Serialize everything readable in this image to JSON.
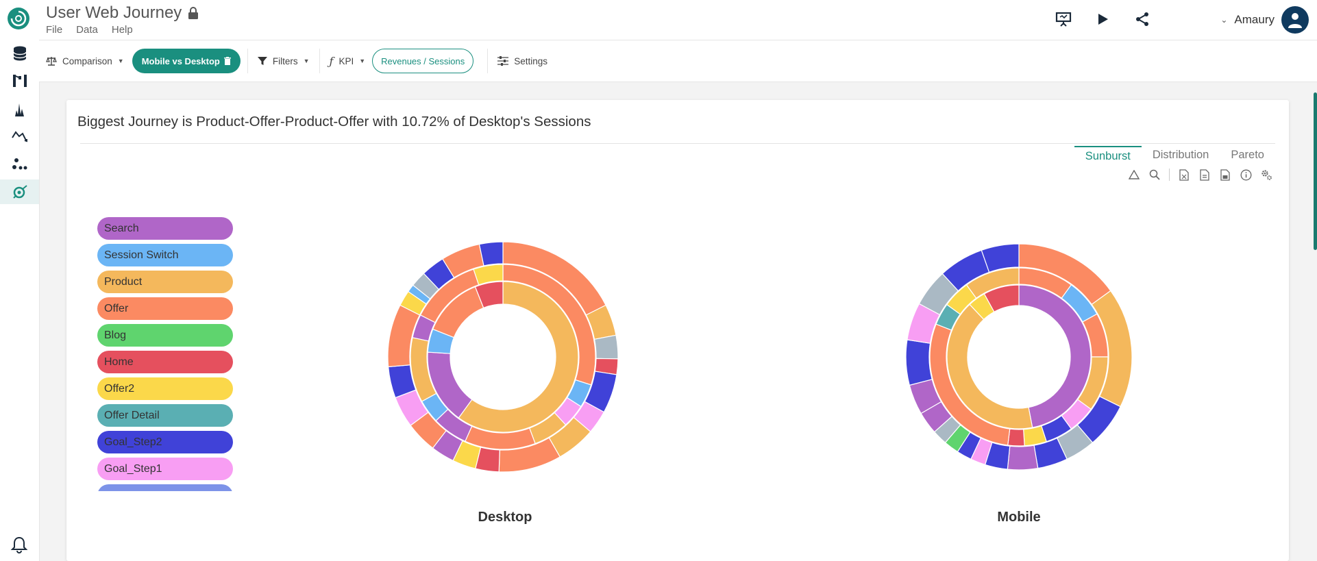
{
  "header": {
    "title": "User Web Journey",
    "menu": [
      "File",
      "Data",
      "Help"
    ],
    "user_name": "Amaury"
  },
  "toolbar": {
    "comparison_label": "Comparison",
    "comparison_value": "Mobile vs Desktop",
    "filters_label": "Filters",
    "kpi_label": "KPI",
    "kpi_value": "Revenues / Sessions",
    "settings_label": "Settings"
  },
  "card": {
    "title": "Biggest Journey is Product-Offer-Product-Offer with 10.72% of Desktop's Sessions",
    "tabs": [
      "Sunburst",
      "Distribution",
      "Pareto"
    ],
    "active_tab": "Sunburst"
  },
  "legend": [
    {
      "label": "Search",
      "color": "#b066c8"
    },
    {
      "label": "Session Switch",
      "color": "#6bb5f5"
    },
    {
      "label": "Product",
      "color": "#f4b85c"
    },
    {
      "label": "Offer",
      "color": "#fb8a62"
    },
    {
      "label": "Blog",
      "color": "#5fd46e"
    },
    {
      "label": "Home",
      "color": "#e5505e"
    },
    {
      "label": "Offer2",
      "color": "#fbd84a"
    },
    {
      "label": "Offer Detail",
      "color": "#5aafb3"
    },
    {
      "label": "Goal_Step2",
      "color": "#4042d8"
    },
    {
      "label": "Goal_Step1",
      "color": "#f89ef3"
    },
    {
      "label": "",
      "color": "#7d93e8"
    }
  ],
  "chart_data": [
    {
      "type": "sunburst",
      "title": "Desktop",
      "rings": [
        [
          {
            "label": "Product",
            "share": 0.6,
            "color": "#f4b85c"
          },
          {
            "label": "Search",
            "share": 0.16,
            "color": "#b066c8"
          },
          {
            "label": "Session Switch",
            "share": 0.05,
            "color": "#6bb5f5"
          },
          {
            "label": "Offer",
            "share": 0.13,
            "color": "#fb8a62"
          },
          {
            "label": "Home",
            "share": 0.06,
            "color": "#e5505e"
          }
        ],
        [
          {
            "label": "Offer",
            "share": 0.29,
            "color": "#fb8a62"
          },
          {
            "label": "Session Switch",
            "share": 0.04,
            "color": "#6bb5f5"
          },
          {
            "label": "Goal_Step1",
            "share": 0.04,
            "color": "#f89ef3"
          },
          {
            "label": "Product",
            "share": 0.06,
            "color": "#f4b85c"
          },
          {
            "label": "Offer",
            "share": 0.12,
            "color": "#fb8a62"
          },
          {
            "label": "Search",
            "share": 0.06,
            "color": "#b066c8"
          },
          {
            "label": "Session Switch",
            "share": 0.04,
            "color": "#6bb5f5"
          },
          {
            "label": "Product",
            "share": 0.11,
            "color": "#f4b85c"
          },
          {
            "label": "Search",
            "share": 0.04,
            "color": "#b066c8"
          },
          {
            "label": "Offer",
            "share": 0.12,
            "color": "#fb8a62"
          },
          {
            "label": "Offer2",
            "share": 0.05,
            "color": "#fbd84a"
          }
        ],
        [
          {
            "label": "Offer",
            "share": 0.16,
            "color": "#fb8a62"
          },
          {
            "label": "Product",
            "share": 0.04,
            "color": "#f4b85c"
          },
          {
            "label": "Offer Detail",
            "share": 0.03,
            "color": "#aab9c4"
          },
          {
            "label": "Home",
            "share": 0.02,
            "color": "#e5505e"
          },
          {
            "label": "Goal_Step2",
            "share": 0.05,
            "color": "#4042d8"
          },
          {
            "label": "Goal_Step1",
            "share": 0.03,
            "color": "#f89ef3"
          },
          {
            "label": "Product",
            "share": 0.05,
            "color": "#f4b85c"
          },
          {
            "label": "Offer",
            "share": 0.08,
            "color": "#fb8a62"
          },
          {
            "label": "Home",
            "share": 0.03,
            "color": "#e5505e"
          },
          {
            "label": "Offer2",
            "share": 0.03,
            "color": "#fbd84a"
          },
          {
            "label": "Search",
            "share": 0.03,
            "color": "#b066c8"
          },
          {
            "label": "Offer",
            "share": 0.04,
            "color": "#fb8a62"
          },
          {
            "label": "Goal_Step1",
            "share": 0.04,
            "color": "#f89ef3"
          },
          {
            "label": "Goal_Step2",
            "share": 0.04,
            "color": "#4042d8"
          },
          {
            "label": "Offer",
            "share": 0.08,
            "color": "#fb8a62"
          },
          {
            "label": "Offer2",
            "share": 0.02,
            "color": "#fbd84a"
          },
          {
            "label": "Session Switch",
            "share": 0.01,
            "color": "#6bb5f5"
          },
          {
            "label": "Offer Detail",
            "share": 0.02,
            "color": "#aab9c4"
          },
          {
            "label": "Goal_Step2",
            "share": 0.03,
            "color": "#4042d8"
          },
          {
            "label": "Offer",
            "share": 0.05,
            "color": "#fb8a62"
          },
          {
            "label": "Goal_Step2",
            "share": 0.03,
            "color": "#4042d8"
          }
        ]
      ]
    },
    {
      "type": "sunburst",
      "title": "Mobile",
      "rings": [
        [
          {
            "label": "Search",
            "share": 0.47,
            "color": "#b066c8"
          },
          {
            "label": "Product",
            "share": 0.41,
            "color": "#f4b85c"
          },
          {
            "label": "Offer2",
            "share": 0.04,
            "color": "#fbd84a"
          },
          {
            "label": "Home",
            "share": 0.08,
            "color": "#e5505e"
          }
        ],
        [
          {
            "label": "Offer",
            "share": 0.1,
            "color": "#fb8a62"
          },
          {
            "label": "Session Switch",
            "share": 0.07,
            "color": "#6bb5f5"
          },
          {
            "label": "Offer",
            "share": 0.08,
            "color": "#fb8a62"
          },
          {
            "label": "Product",
            "share": 0.1,
            "color": "#f4b85c"
          },
          {
            "label": "Goal_Step1",
            "share": 0.05,
            "color": "#f89ef3"
          },
          {
            "label": "Goal_Step2",
            "share": 0.05,
            "color": "#4042d8"
          },
          {
            "label": "Offer2",
            "share": 0.04,
            "color": "#fbd84a"
          },
          {
            "label": "Home",
            "share": 0.03,
            "color": "#e5505e"
          },
          {
            "label": "Offer",
            "share": 0.29,
            "color": "#fb8a62"
          },
          {
            "label": "Offer Detail",
            "share": 0.04,
            "color": "#5aafb3"
          },
          {
            "label": "Offer2",
            "share": 0.05,
            "color": "#fbd84a"
          },
          {
            "label": "Product",
            "share": 0.1,
            "color": "#f4b85c"
          }
        ],
        [
          {
            "label": "Offer",
            "share": 0.14,
            "color": "#fb8a62"
          },
          {
            "label": "Product",
            "share": 0.16,
            "color": "#f4b85c"
          },
          {
            "label": "Goal_Step2",
            "share": 0.06,
            "color": "#4042d8"
          },
          {
            "label": "Offer Detail",
            "share": 0.04,
            "color": "#aab9c4"
          },
          {
            "label": "Goal_Step2",
            "share": 0.04,
            "color": "#4042d8"
          },
          {
            "label": "Search",
            "share": 0.04,
            "color": "#b066c8"
          },
          {
            "label": "Goal_Step2",
            "share": 0.03,
            "color": "#4042d8"
          },
          {
            "label": "Goal_Step1",
            "share": 0.02,
            "color": "#f89ef3"
          },
          {
            "label": "Goal_Step2",
            "share": 0.02,
            "color": "#4042d8"
          },
          {
            "label": "Blog",
            "share": 0.02,
            "color": "#5fd46e"
          },
          {
            "label": "Offer Detail",
            "share": 0.02,
            "color": "#aab9c4"
          },
          {
            "label": "Search",
            "share": 0.03,
            "color": "#b066c8"
          },
          {
            "label": "Search",
            "share": 0.04,
            "color": "#b066c8"
          },
          {
            "label": "Goal_Step2",
            "share": 0.06,
            "color": "#4042d8"
          },
          {
            "label": "Goal_Step1",
            "share": 0.05,
            "color": "#f89ef3"
          },
          {
            "label": "Offer Detail",
            "share": 0.05,
            "color": "#aab9c4"
          },
          {
            "label": "Goal_Step2",
            "share": 0.06,
            "color": "#4042d8"
          },
          {
            "label": "Goal_Step2",
            "share": 0.05,
            "color": "#4042d8"
          }
        ]
      ]
    }
  ]
}
